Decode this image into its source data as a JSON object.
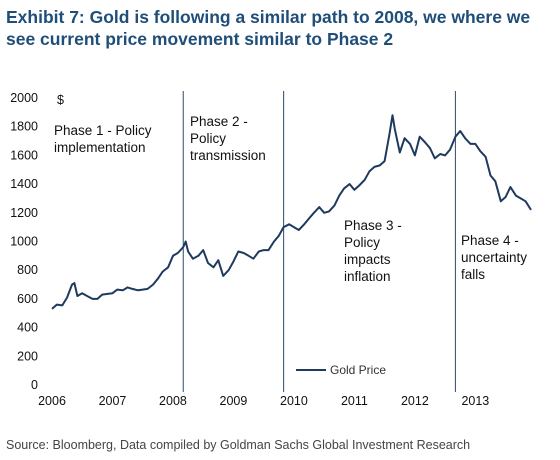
{
  "title": "Exhibit 7: Gold is following a similar path to 2008, we where we see current price movement similar to Phase 2",
  "source": "Source: Bloomberg, Data compiled by Goldman Sachs Global Investment Research",
  "colors": {
    "title": "#1f4e79",
    "series": "#1f3a5f",
    "phase_line": "#2c4a6e"
  },
  "chart_data": {
    "type": "line",
    "y_unit_label": "$",
    "ylim": [
      0,
      2000
    ],
    "y_ticks": [
      0,
      200,
      400,
      600,
      800,
      1000,
      1200,
      1400,
      1600,
      1800,
      2000
    ],
    "xlim": [
      2006.0,
      2013.92
    ],
    "x_ticks": [
      2006,
      2007,
      2008,
      2009,
      2010,
      2011,
      2012,
      2013
    ],
    "grid": false,
    "legend": "bottom-center",
    "series": [
      {
        "name": "Gold Price",
        "x": [
          2006.0,
          2006.08,
          2006.17,
          2006.25,
          2006.33,
          2006.37,
          2006.42,
          2006.5,
          2006.58,
          2006.67,
          2006.75,
          2006.83,
          2006.92,
          2007.0,
          2007.08,
          2007.17,
          2007.25,
          2007.33,
          2007.42,
          2007.5,
          2007.58,
          2007.67,
          2007.75,
          2007.83,
          2007.92,
          2008.0,
          2008.08,
          2008.17,
          2008.21,
          2008.25,
          2008.33,
          2008.42,
          2008.5,
          2008.58,
          2008.67,
          2008.75,
          2008.83,
          2008.92,
          2009.0,
          2009.08,
          2009.17,
          2009.25,
          2009.33,
          2009.42,
          2009.5,
          2009.58,
          2009.67,
          2009.75,
          2009.83,
          2009.92,
          2010.0,
          2010.08,
          2010.17,
          2010.25,
          2010.33,
          2010.42,
          2010.5,
          2010.58,
          2010.67,
          2010.75,
          2010.83,
          2010.92,
          2011.0,
          2011.08,
          2011.17,
          2011.25,
          2011.33,
          2011.42,
          2011.5,
          2011.58,
          2011.63,
          2011.67,
          2011.75,
          2011.83,
          2011.92,
          2012.0,
          2012.08,
          2012.17,
          2012.25,
          2012.33,
          2012.42,
          2012.5,
          2012.58,
          2012.67,
          2012.75,
          2012.83,
          2012.92,
          2013.0,
          2013.08,
          2013.17,
          2013.25,
          2013.33,
          2013.42,
          2013.5,
          2013.58,
          2013.67,
          2013.75,
          2013.83,
          2013.92
        ],
        "values": [
          530,
          560,
          555,
          610,
          700,
          710,
          620,
          640,
          620,
          600,
          600,
          630,
          635,
          640,
          665,
          660,
          680,
          670,
          660,
          665,
          670,
          700,
          740,
          790,
          820,
          900,
          920,
          960,
          1000,
          930,
          880,
          900,
          940,
          850,
          820,
          870,
          760,
          800,
          860,
          930,
          920,
          900,
          880,
          930,
          940,
          940,
          1000,
          1040,
          1100,
          1120,
          1100,
          1080,
          1120,
          1160,
          1200,
          1240,
          1200,
          1210,
          1250,
          1320,
          1370,
          1400,
          1360,
          1390,
          1430,
          1490,
          1520,
          1530,
          1560,
          1750,
          1880,
          1780,
          1620,
          1720,
          1680,
          1600,
          1730,
          1690,
          1650,
          1580,
          1610,
          1600,
          1640,
          1730,
          1770,
          1720,
          1680,
          1680,
          1630,
          1590,
          1460,
          1420,
          1280,
          1310,
          1380,
          1320,
          1300,
          1280,
          1220
        ]
      }
    ],
    "phase_boundaries": [
      2008.17,
      2009.83,
      2012.67
    ],
    "annotations": [
      {
        "lines": [
          "Phase 1 - Policy",
          "implementation"
        ]
      },
      {
        "lines": [
          "Phase 2 -",
          "Policy",
          "transmission"
        ]
      },
      {
        "lines": [
          "Phase 3 -",
          "Policy",
          "impacts",
          "inflation"
        ]
      },
      {
        "lines": [
          "Phase 4 -",
          "uncertainty",
          "falls"
        ]
      }
    ]
  }
}
